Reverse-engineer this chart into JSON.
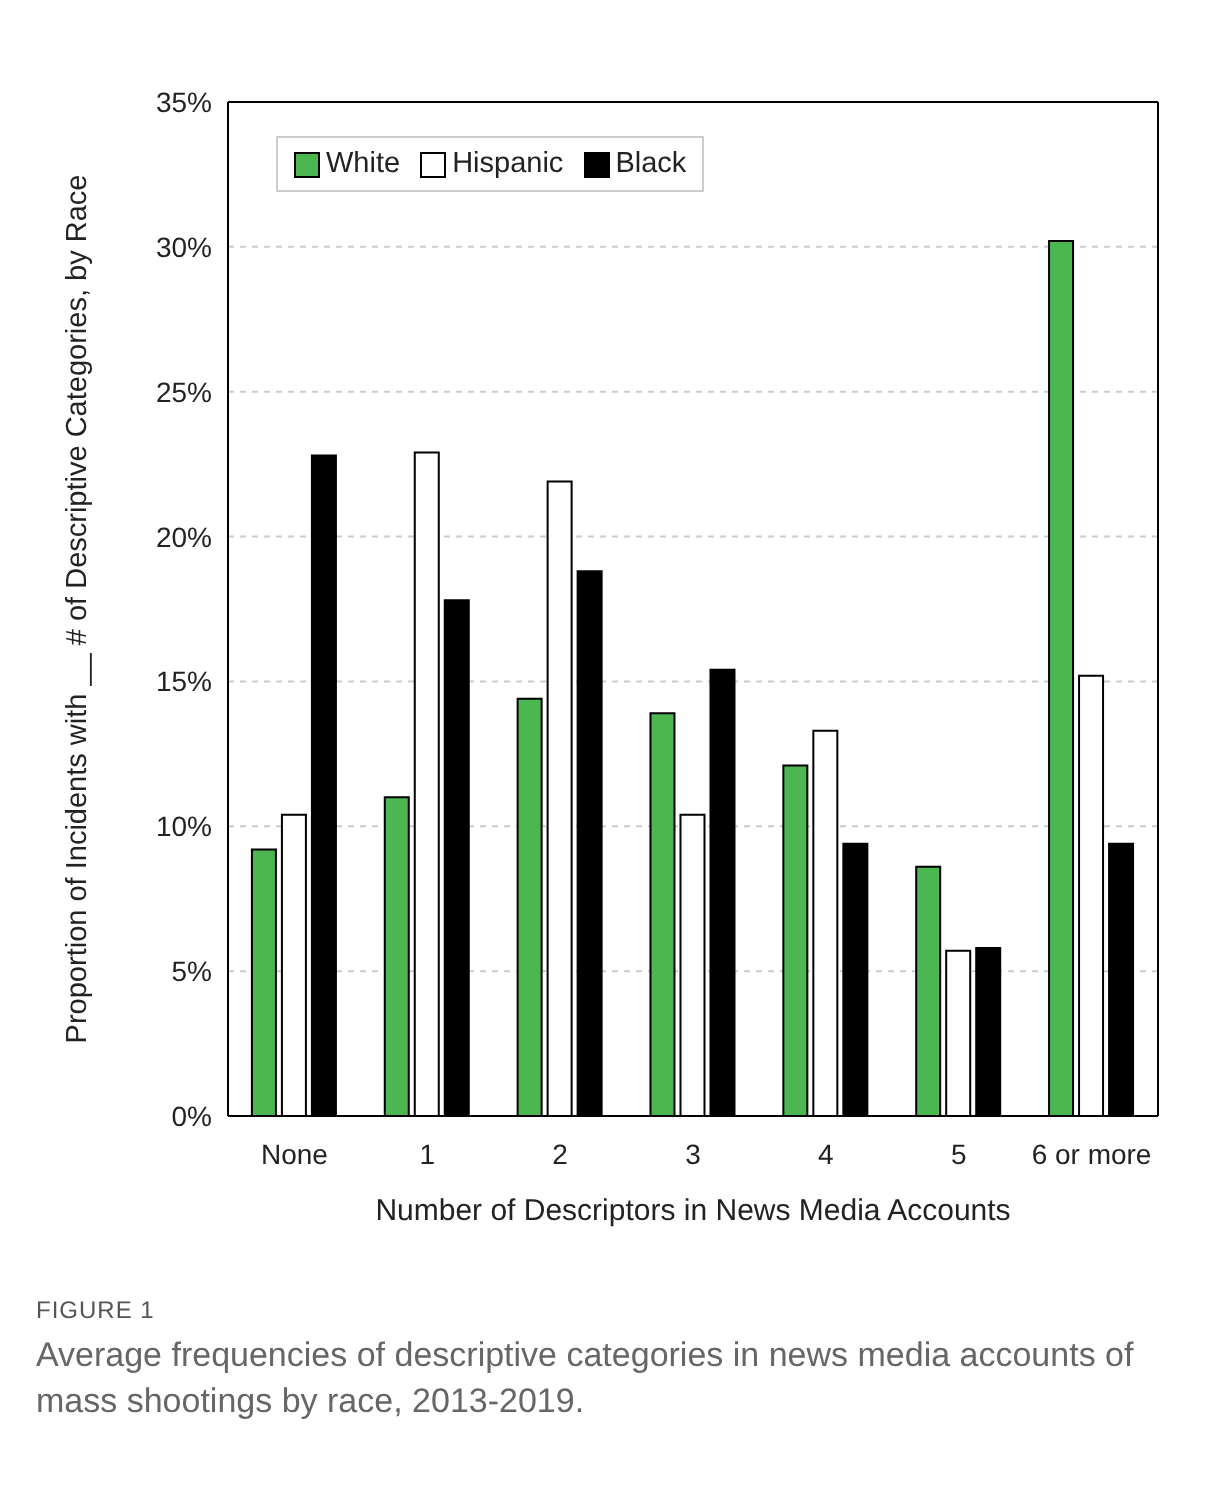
{
  "chart_data": {
    "type": "bar",
    "xlabel": "Number of Descriptors in News Media Accounts",
    "ylabel": "Proportion of Incidents with __ # of Descriptive Categories, by Race",
    "categories": [
      "None",
      "1",
      "2",
      "3",
      "4",
      "5",
      "6 or more"
    ],
    "series": [
      {
        "name": "White",
        "color": "#4cb651",
        "values": [
          9.2,
          11.0,
          14.4,
          13.9,
          12.1,
          8.6,
          30.2
        ]
      },
      {
        "name": "Hispanic",
        "color": "#ffffff",
        "values": [
          10.4,
          22.9,
          21.9,
          10.4,
          13.3,
          5.7,
          15.2
        ]
      },
      {
        "name": "Black",
        "color": "#000000",
        "values": [
          22.8,
          17.8,
          18.8,
          15.4,
          9.4,
          5.8,
          9.4
        ]
      }
    ],
    "ylim": [
      0,
      35
    ],
    "yticks": [
      {
        "value": 0,
        "label": "0%"
      },
      {
        "value": 5,
        "label": "5%"
      },
      {
        "value": 10,
        "label": "10%"
      },
      {
        "value": 15,
        "label": "15%"
      },
      {
        "value": 20,
        "label": "20%"
      },
      {
        "value": 25,
        "label": "25%"
      },
      {
        "value": 30,
        "label": "30%"
      },
      {
        "value": 35,
        "label": "35%"
      }
    ],
    "grid": "y",
    "legend": "top left",
    "annotations": [
      "FIGURE 1",
      "Average frequencies of descriptive categories in news media accounts of mass shootings by race, 2013-2019."
    ]
  }
}
